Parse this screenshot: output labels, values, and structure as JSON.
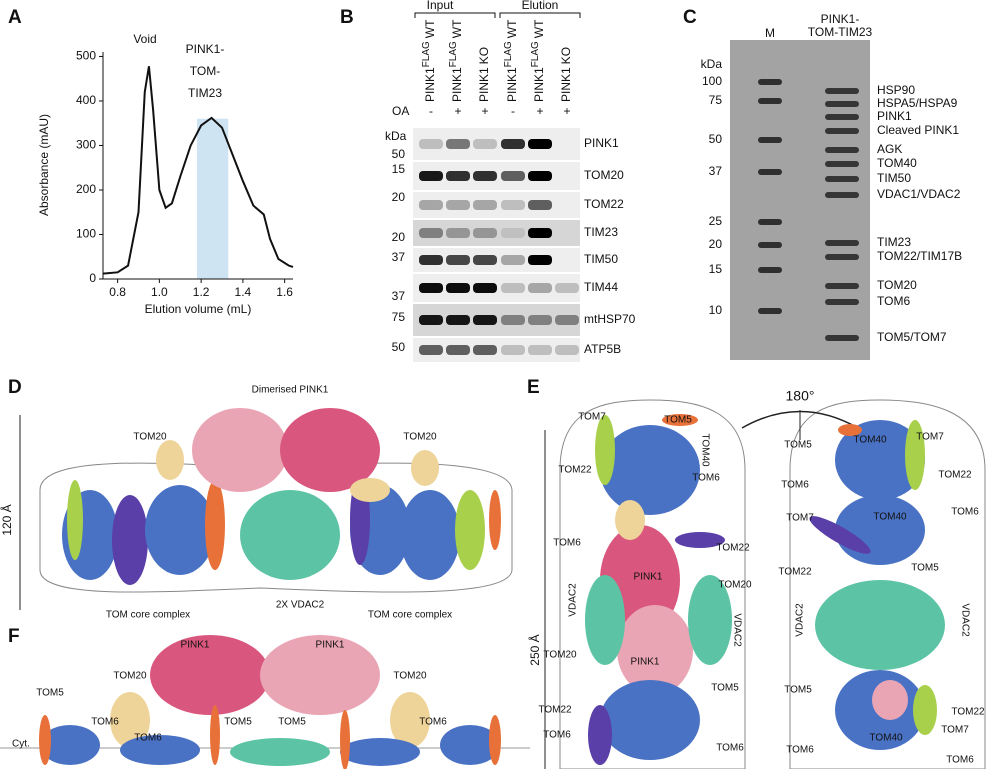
{
  "panel_letters": [
    "A",
    "B",
    "C",
    "D",
    "E",
    "F"
  ],
  "chart_data": {
    "type": "line",
    "xlabel": "Elution volume (mL)",
    "ylabel": "Absorbance (mAU)",
    "annotations": [
      "Void",
      "PINK1-",
      "TOM-",
      "TIM23"
    ],
    "x": [
      0.73,
      0.8,
      0.85,
      0.9,
      0.93,
      0.95,
      0.97,
      1.0,
      1.03,
      1.06,
      1.1,
      1.15,
      1.2,
      1.25,
      1.3,
      1.35,
      1.4,
      1.45,
      1.5,
      1.53,
      1.57,
      1.62,
      1.64
    ],
    "series": [
      {
        "color": "#111111",
        "values": [
          12,
          15,
          30,
          150,
          420,
          478,
          380,
          200,
          160,
          170,
          230,
          300,
          345,
          362,
          340,
          280,
          220,
          165,
          145,
          90,
          45,
          30,
          27
        ]
      }
    ],
    "highlight": [
      1.18,
      1.33
    ],
    "highlight_color": "#cfe4f3",
    "xlim": [
      0.73,
      1.64
    ],
    "xticks": [
      0.8,
      {
        "value": 1,
        "label": "1.0"
      },
      1.2,
      1.4,
      1.6
    ],
    "ylim": [
      0,
      510
    ],
    "yticks": [
      0,
      100,
      200,
      300,
      400,
      500
    ]
  },
  "blot": {
    "groups": [
      "Input",
      "Elution"
    ],
    "oa_label": "OA",
    "oa": [
      "-",
      "+",
      "+",
      "-",
      "+",
      "+"
    ],
    "lanes": [
      {
        "label": "PINK1",
        "sup": "FLAG",
        "suffix": "WT"
      },
      {
        "label": "PINK1",
        "sup": "FLAG",
        "suffix": "WT"
      },
      {
        "label": "PINK1",
        "suffix": "KO"
      },
      {
        "label": "PINK1",
        "sup": "FLAG",
        "suffix": "WT"
      },
      {
        "label": "PINK1",
        "sup": "FLAG",
        "suffix": "WT"
      },
      {
        "label": "PINK1",
        "suffix": "KO"
      }
    ],
    "kda_label": "kDa",
    "markers": [
      "50",
      "15",
      "20",
      "20",
      "37",
      "37",
      "75",
      "50"
    ],
    "rows": [
      "PINK1",
      "TOM20",
      "TOM22",
      "TIM23",
      "TIM50",
      "TIM44",
      "mtHSP70",
      "ATP5B"
    ]
  },
  "gel": {
    "lanes": [
      "M",
      "PINK1-",
      "TOM-TIM23"
    ],
    "kda_label": "kDa",
    "markers": [
      "100",
      "75",
      "50",
      "37",
      "25",
      "20",
      "15",
      "10"
    ],
    "bands": [
      "HSP90",
      "HSPA5/HSPA9",
      "PINK1",
      "Cleaved PINK1",
      "AGK",
      "TOM40",
      "TIM50",
      "VDAC1/VDAC2",
      "TIM23",
      "TOM22/TIM17B",
      "TOM20",
      "TOM6",
      "TOM5/TOM7"
    ]
  },
  "panel_d": {
    "labels": [
      "Dimerised PINK1",
      "TOM20",
      "TOM20",
      "120 Å",
      "TOM core complex",
      "2X VDAC2",
      "TOM core complex"
    ]
  },
  "panel_e": {
    "rotation": "180°",
    "scale": "250 Å",
    "left_labels": [
      "TOM7",
      "TOM5",
      "TOM40",
      "TOM22",
      "TOM6",
      "TOM6",
      "TOM22",
      "TOM20",
      "PINK1",
      "VDAC2",
      "VDAC2",
      "PINK1",
      "TOM20",
      "TOM5",
      "TOM22",
      "TOM6",
      "TOM6"
    ],
    "right_labels": [
      "TOM5",
      "TOM40",
      "TOM7",
      "TOM6",
      "TOM22",
      "TOM40",
      "TOM6",
      "TOM7",
      "TOM22",
      "TOM5",
      "VDAC2",
      "VDAC2",
      "TOM5",
      "TOM22",
      "TOM40",
      "TOM7",
      "TOM6",
      "TOM6"
    ]
  },
  "panel_f": {
    "labels": [
      "PINK1",
      "PINK1",
      "TOM20",
      "TOM20",
      "TOM5",
      "TOM6",
      "TOM6",
      "TOM5",
      "TOM5",
      "TOM6",
      "Cyt."
    ]
  }
}
